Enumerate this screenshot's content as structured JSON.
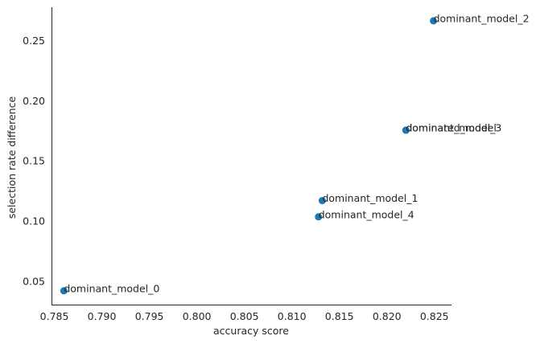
{
  "chart_data": {
    "type": "scatter",
    "xlabel": "accuracy score",
    "ylabel": "selection rate difference",
    "xlim": [
      0.7847,
      0.8268
    ],
    "ylim": [
      0.0305,
      0.2778
    ],
    "xticks": [
      "0.785",
      "0.790",
      "0.795",
      "0.800",
      "0.805",
      "0.810",
      "0.815",
      "0.820",
      "0.825"
    ],
    "yticks": [
      "0.05",
      "0.10",
      "0.15",
      "0.20",
      "0.25"
    ],
    "grid": false,
    "marker_color": "#1f77b4",
    "points": [
      {
        "label": "dominant_model_0",
        "x": 0.786,
        "y": 0.042
      },
      {
        "label": "dominant_model_1",
        "x": 0.8132,
        "y": 0.117
      },
      {
        "label": "dominant_model_2",
        "x": 0.8249,
        "y": 0.2665
      },
      {
        "label": "dominant_model_3",
        "x": 0.822,
        "y": 0.1755
      },
      {
        "label": "dominant_model_4",
        "x": 0.8128,
        "y": 0.1035
      },
      {
        "label": "dominated_model",
        "x": 0.822,
        "y": 0.1755
      }
    ]
  }
}
